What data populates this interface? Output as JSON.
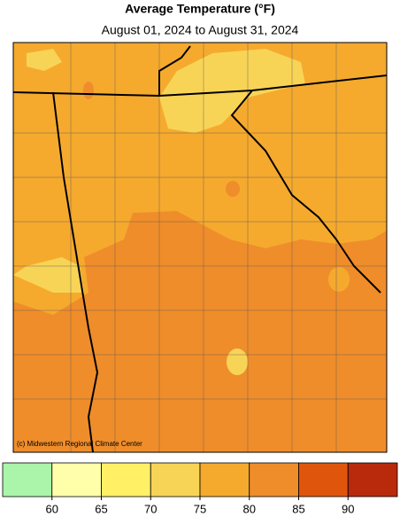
{
  "header": {
    "title": "Average Temperature (°F)",
    "subtitle": "August 01, 2024 to August 31, 2024"
  },
  "map": {
    "credit": "(c) Midwestern Regional Climate Center"
  },
  "legend": {
    "colors": [
      "#aaf5aa",
      "#ffffaa",
      "#fff066",
      "#f8d456",
      "#f5aa2e",
      "#ef8d2b",
      "#e0550c",
      "#b82a0b"
    ],
    "ticks": [
      60,
      65,
      70,
      75,
      80,
      85,
      90
    ]
  }
}
